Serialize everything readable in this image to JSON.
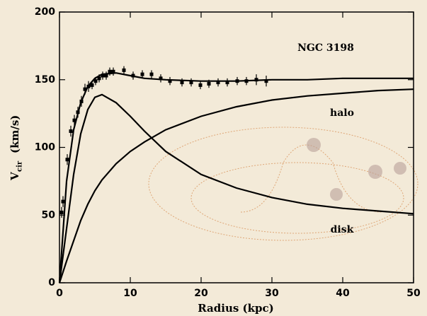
{
  "chart_data": {
    "type": "line",
    "annotation": "NGC 3198",
    "xlabel": "Radius  (kpc)",
    "ylabel_symbol": "V",
    "ylabel_subscript": "cir",
    "ylabel_unit": "(km/s)",
    "xlim": [
      0,
      50
    ],
    "xticks": [
      0,
      10,
      20,
      30,
      40,
      50
    ],
    "ylim": [
      0,
      200
    ],
    "yticks": [
      0,
      50,
      100,
      150,
      200
    ],
    "x": [
      0,
      1,
      2,
      3,
      4,
      5,
      6,
      8,
      10,
      12,
      15,
      20,
      25,
      30,
      35,
      40,
      45,
      50
    ],
    "series": [
      {
        "color": "#000000",
        "values": [
          0,
          75,
          113,
          133,
          145,
          151,
          154,
          155,
          153,
          151,
          150,
          149,
          149,
          150,
          150,
          151,
          151,
          151
        ]
      },
      {
        "name": "disk",
        "color": "#000000",
        "values": [
          0,
          40,
          80,
          110,
          128,
          137,
          139,
          133,
          123,
          112,
          97,
          80,
          70,
          63,
          58,
          55,
          53,
          51
        ]
      },
      {
        "name": "halo",
        "color": "#000000",
        "values": [
          0,
          16,
          31,
          46,
          58,
          68,
          76,
          88,
          97,
          104,
          113,
          123,
          130,
          135,
          138,
          140,
          142,
          143
        ]
      }
    ],
    "points": {
      "color": "#000000",
      "x": [
        0.3,
        0.5,
        1.1,
        1.6,
        2.1,
        2.6,
        3.1,
        3.6,
        4.1,
        4.6,
        5.1,
        5.6,
        6.1,
        6.6,
        7.1,
        7.6,
        9.1,
        10.4,
        11.7,
        13,
        14.3,
        15.6,
        17.3,
        18.6,
        19.9,
        21.1,
        22.4,
        23.7,
        25.1,
        26.4,
        27.8,
        29.2
      ],
      "values": [
        52,
        60,
        91,
        112,
        120,
        126,
        134,
        143,
        145,
        146,
        149,
        151,
        153,
        153,
        156,
        156,
        157,
        153,
        154,
        154,
        151,
        149,
        148,
        148,
        146,
        147,
        148,
        148,
        149,
        149,
        150,
        149
      ],
      "errors": [
        4,
        4,
        4,
        4,
        4,
        4,
        4,
        4,
        4,
        3,
        3,
        3,
        3,
        3,
        3,
        3,
        3,
        3,
        3,
        3,
        3,
        3,
        3,
        3,
        3,
        3,
        3,
        3,
        3,
        3,
        4,
        4
      ]
    }
  }
}
